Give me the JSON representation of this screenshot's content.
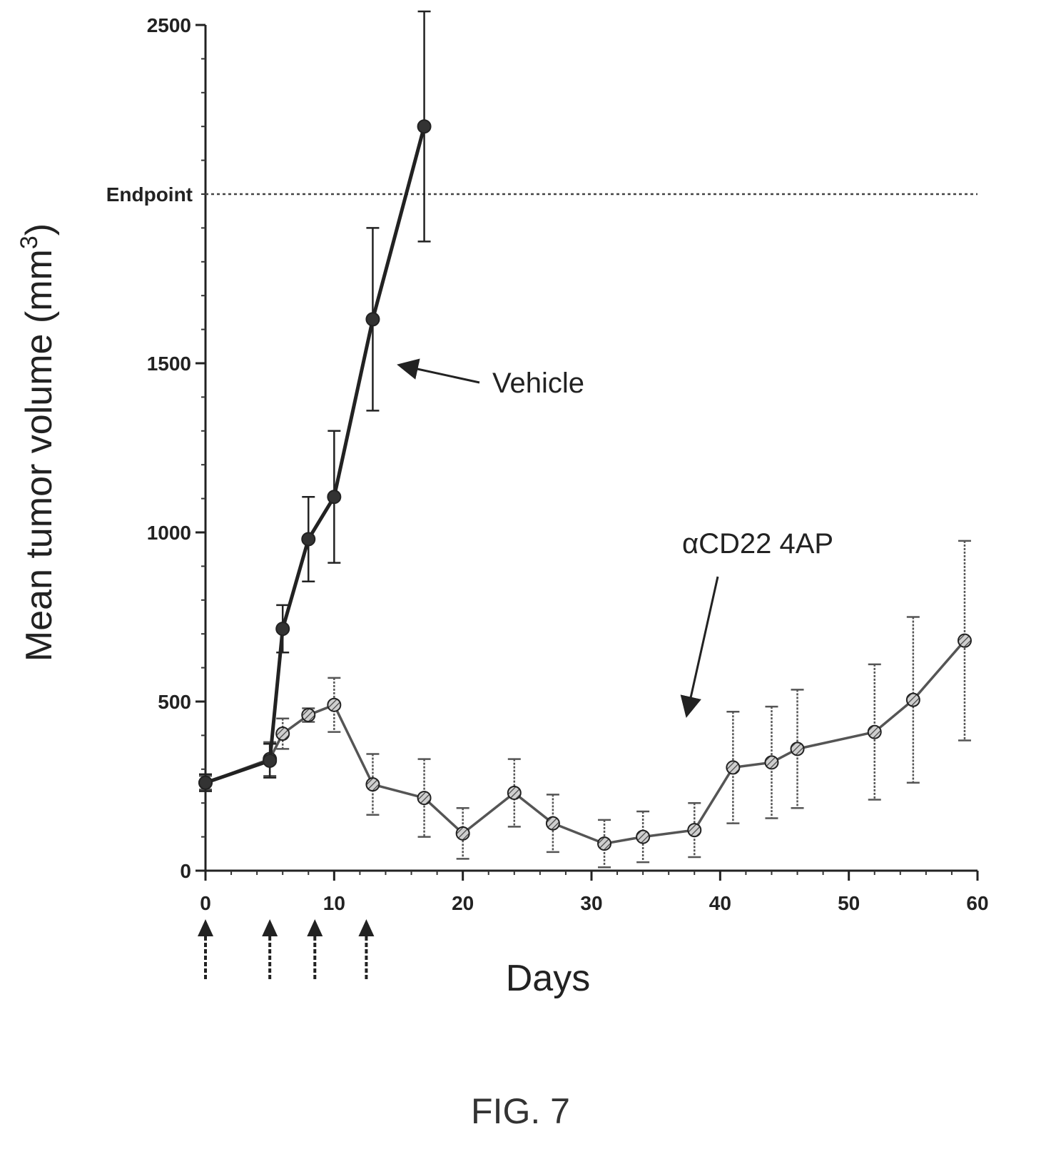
{
  "figure": {
    "caption": "FIG. 7"
  },
  "chart_data": {
    "type": "line",
    "title": "",
    "xlabel": "Days",
    "ylabel": "Mean tumor volume (mm",
    "ylabel_superscript": "3",
    "ylabel_close": ")",
    "xlim": [
      0,
      60
    ],
    "ylim": [
      0,
      2500
    ],
    "x_ticks": [
      "0",
      "10",
      "20",
      "30",
      "40",
      "50",
      "60"
    ],
    "y_ticks": [
      "0",
      "500",
      "1000",
      "1500",
      "2500"
    ],
    "y_tick_values": [
      0,
      500,
      1000,
      1500,
      2500
    ],
    "grid": false,
    "legend": "none",
    "endpoint": {
      "label": "Endpoint",
      "value": 2000
    },
    "dosing_days": [
      0,
      5,
      8.5,
      12.5
    ],
    "series": [
      {
        "name": "Vehicle",
        "color": "#222222",
        "marker": "filled-circle",
        "x": [
          0,
          5,
          6,
          8,
          10,
          13,
          17
        ],
        "y": [
          260,
          325,
          715,
          980,
          1105,
          1630,
          2200
        ],
        "error": [
          25,
          50,
          70,
          125,
          195,
          270,
          340
        ]
      },
      {
        "name": "αCD22 4AP",
        "color": "#555555",
        "marker": "hatched-circle",
        "x": [
          0,
          5,
          6,
          8,
          10,
          13,
          17,
          20,
          24,
          27,
          31,
          34,
          38,
          41,
          44,
          46,
          52,
          55,
          59
        ],
        "y": [
          260,
          330,
          405,
          460,
          490,
          255,
          215,
          110,
          230,
          140,
          80,
          100,
          120,
          305,
          320,
          360,
          410,
          505,
          680
        ],
        "error": [
          20,
          50,
          45,
          20,
          80,
          90,
          115,
          75,
          100,
          85,
          70,
          75,
          80,
          165,
          165,
          175,
          200,
          245,
          295
        ]
      }
    ],
    "annotations": {
      "vehicle_label": "Vehicle",
      "treatment_label": "αCD22 4AP"
    }
  }
}
